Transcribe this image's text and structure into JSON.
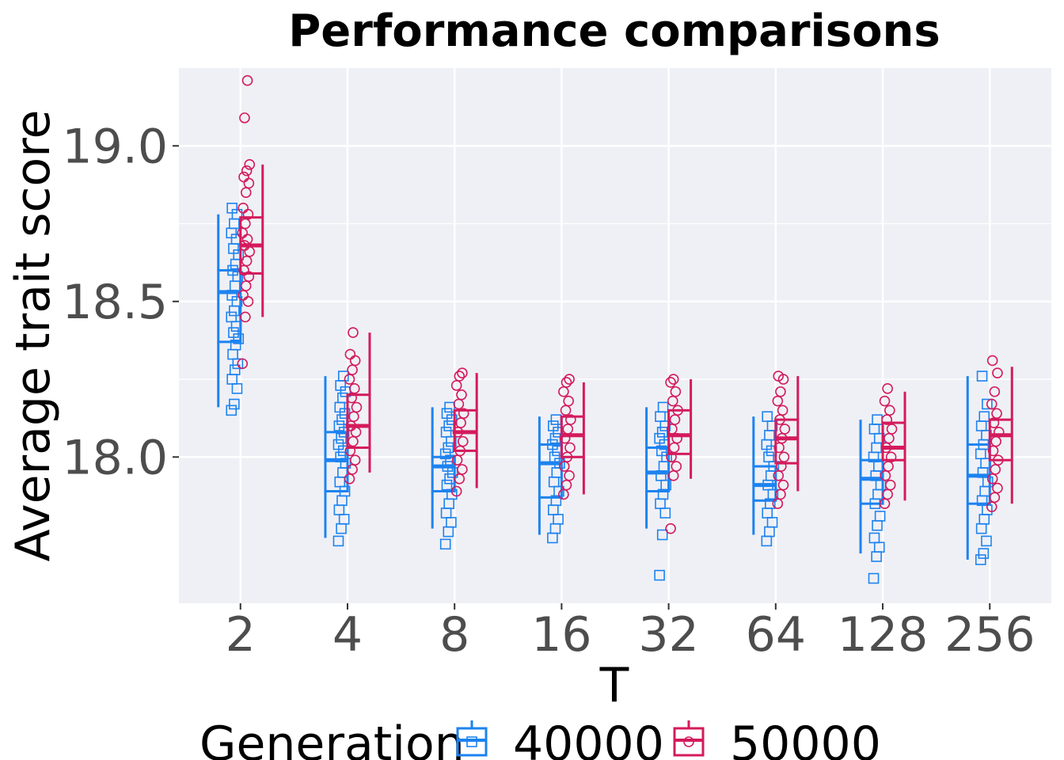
{
  "chart_data": {
    "type": "boxplot",
    "title": "Performance comparisons",
    "xlabel": "T",
    "ylabel": "Average trait score",
    "categories": [
      "2",
      "4",
      "8",
      "16",
      "32",
      "64",
      "128",
      "256"
    ],
    "yticks": [
      18.0,
      18.5,
      19.0
    ],
    "ytick_labels": [
      "18.0",
      "18.5",
      "19.0"
    ],
    "ylim": [
      17.53,
      19.25
    ],
    "grid": true,
    "background": "#eff0f5",
    "legend": {
      "title": "Generation",
      "position": "bottom",
      "entries": [
        "40000",
        "50000"
      ]
    },
    "series": [
      {
        "name": "40000",
        "color": "#1d83f0",
        "marker": "square",
        "boxes": [
          {
            "low": 18.16,
            "q1": 18.37,
            "median": 18.53,
            "q3": 18.6,
            "high": 18.78
          },
          {
            "low": 17.74,
            "q1": 17.89,
            "median": 17.99,
            "q3": 18.08,
            "high": 18.26
          },
          {
            "low": 17.77,
            "q1": 17.89,
            "median": 17.97,
            "q3": 18.0,
            "high": 18.16
          },
          {
            "low": 17.75,
            "q1": 17.87,
            "median": 17.98,
            "q3": 18.04,
            "high": 18.13
          },
          {
            "low": 17.77,
            "q1": 17.89,
            "median": 17.95,
            "q3": 18.03,
            "high": 18.16
          },
          {
            "low": 17.75,
            "q1": 17.86,
            "median": 17.91,
            "q3": 17.97,
            "high": 18.13
          },
          {
            "low": 17.69,
            "q1": 17.85,
            "median": 17.93,
            "q3": 17.99,
            "high": 18.12
          },
          {
            "low": 17.67,
            "q1": 17.85,
            "median": 17.94,
            "q3": 18.04,
            "high": 18.26
          }
        ],
        "points": [
          [
            18.15,
            18.17,
            18.22,
            18.25,
            18.28,
            18.3,
            18.33,
            18.36,
            18.38,
            18.4,
            18.42,
            18.45,
            18.47,
            18.5,
            18.52,
            18.55,
            18.58,
            18.6,
            18.62,
            18.65,
            18.67,
            18.7,
            18.72,
            18.75,
            18.78,
            18.8
          ],
          [
            17.73,
            17.77,
            17.8,
            17.83,
            17.86,
            17.89,
            17.92,
            17.95,
            17.98,
            18.0,
            18.02,
            18.04,
            18.06,
            18.08,
            18.1,
            18.12,
            18.14,
            18.16,
            18.19,
            18.21,
            18.23,
            18.26
          ],
          [
            17.72,
            17.76,
            17.79,
            17.82,
            17.85,
            17.88,
            17.91,
            17.93,
            17.95,
            17.97,
            17.99,
            18.01,
            18.03,
            18.05,
            18.08,
            18.1,
            18.12,
            18.14,
            18.16
          ],
          [
            17.74,
            17.77,
            17.8,
            17.83,
            17.86,
            17.89,
            17.92,
            17.95,
            17.98,
            18.0,
            18.02,
            18.04,
            18.06,
            18.08,
            18.1,
            18.12
          ],
          [
            17.62,
            17.75,
            17.82,
            17.85,
            17.88,
            17.91,
            17.94,
            17.97,
            18.0,
            18.02,
            18.04,
            18.06,
            18.08,
            18.1,
            18.13,
            18.16
          ],
          [
            17.73,
            17.76,
            17.79,
            17.82,
            17.85,
            17.88,
            17.91,
            17.94,
            17.97,
            18.0,
            18.02,
            18.04,
            18.07,
            18.1,
            18.13
          ],
          [
            17.61,
            17.68,
            17.71,
            17.74,
            17.78,
            17.81,
            17.85,
            17.88,
            17.91,
            17.94,
            17.97,
            18.0,
            18.03,
            18.06,
            18.09,
            18.12
          ],
          [
            17.67,
            17.69,
            17.73,
            17.77,
            17.8,
            17.83,
            17.86,
            17.89,
            17.92,
            17.95,
            17.98,
            18.01,
            18.04,
            18.07,
            18.1,
            18.13,
            18.17,
            18.26
          ]
        ]
      },
      {
        "name": "50000",
        "color": "#d41b5c",
        "marker": "circle",
        "boxes": [
          {
            "low": 18.45,
            "q1": 18.59,
            "median": 18.68,
            "q3": 18.77,
            "high": 18.94
          },
          {
            "low": 17.95,
            "q1": 18.03,
            "median": 18.1,
            "q3": 18.2,
            "high": 18.4
          },
          {
            "low": 17.9,
            "q1": 18.02,
            "median": 18.08,
            "q3": 18.15,
            "high": 18.27
          },
          {
            "low": 17.88,
            "q1": 18.0,
            "median": 18.07,
            "q3": 18.13,
            "high": 18.24
          },
          {
            "low": 17.93,
            "q1": 18.01,
            "median": 18.07,
            "q3": 18.15,
            "high": 18.25
          },
          {
            "low": 17.89,
            "q1": 17.98,
            "median": 18.06,
            "q3": 18.12,
            "high": 18.26
          },
          {
            "low": 17.86,
            "q1": 17.99,
            "median": 18.03,
            "q3": 18.11,
            "high": 18.21
          },
          {
            "low": 17.85,
            "q1": 17.99,
            "median": 18.07,
            "q3": 18.12,
            "high": 18.29
          }
        ],
        "points": [
          [
            18.3,
            18.45,
            18.5,
            18.52,
            18.55,
            18.58,
            18.6,
            18.63,
            18.66,
            18.68,
            18.7,
            18.72,
            18.75,
            18.78,
            18.8,
            18.85,
            18.88,
            18.9,
            18.92,
            18.94,
            19.09,
            19.21
          ],
          [
            17.93,
            17.96,
            17.99,
            18.02,
            18.05,
            18.08,
            18.1,
            18.13,
            18.16,
            18.19,
            18.22,
            18.25,
            18.28,
            18.31,
            18.33,
            18.4
          ],
          [
            17.89,
            17.93,
            17.96,
            17.99,
            18.02,
            18.05,
            18.08,
            18.11,
            18.14,
            18.17,
            18.2,
            18.23,
            18.26,
            18.27
          ],
          [
            17.88,
            17.91,
            17.94,
            17.97,
            18.0,
            18.03,
            18.06,
            18.09,
            18.12,
            18.15,
            18.18,
            18.21,
            18.24,
            18.25
          ],
          [
            17.77,
            17.94,
            17.97,
            18.0,
            18.03,
            18.06,
            18.09,
            18.12,
            18.15,
            18.18,
            18.21,
            18.24,
            18.25
          ],
          [
            17.85,
            17.88,
            17.91,
            17.94,
            17.97,
            18.0,
            18.03,
            18.06,
            18.09,
            18.12,
            18.15,
            18.18,
            18.21,
            18.25,
            18.26
          ],
          [
            17.85,
            17.88,
            17.91,
            17.94,
            17.97,
            18.0,
            18.03,
            18.06,
            18.09,
            18.12,
            18.15,
            18.18,
            18.22
          ],
          [
            17.84,
            17.87,
            17.9,
            17.93,
            17.96,
            17.99,
            18.02,
            18.05,
            18.08,
            18.11,
            18.14,
            18.17,
            18.21,
            18.27,
            18.31
          ]
        ]
      }
    ]
  }
}
